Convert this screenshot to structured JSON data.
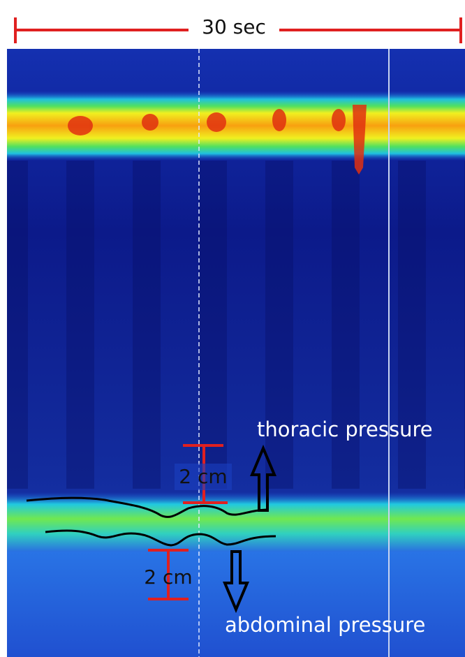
{
  "scale_bar": {
    "label": "30 sec"
  },
  "measurements": [
    {
      "label": "2 cm"
    },
    {
      "label": "2 cm"
    }
  ],
  "annotations": {
    "upper": "thoracic pressure",
    "lower": "abdominal pressure"
  }
}
